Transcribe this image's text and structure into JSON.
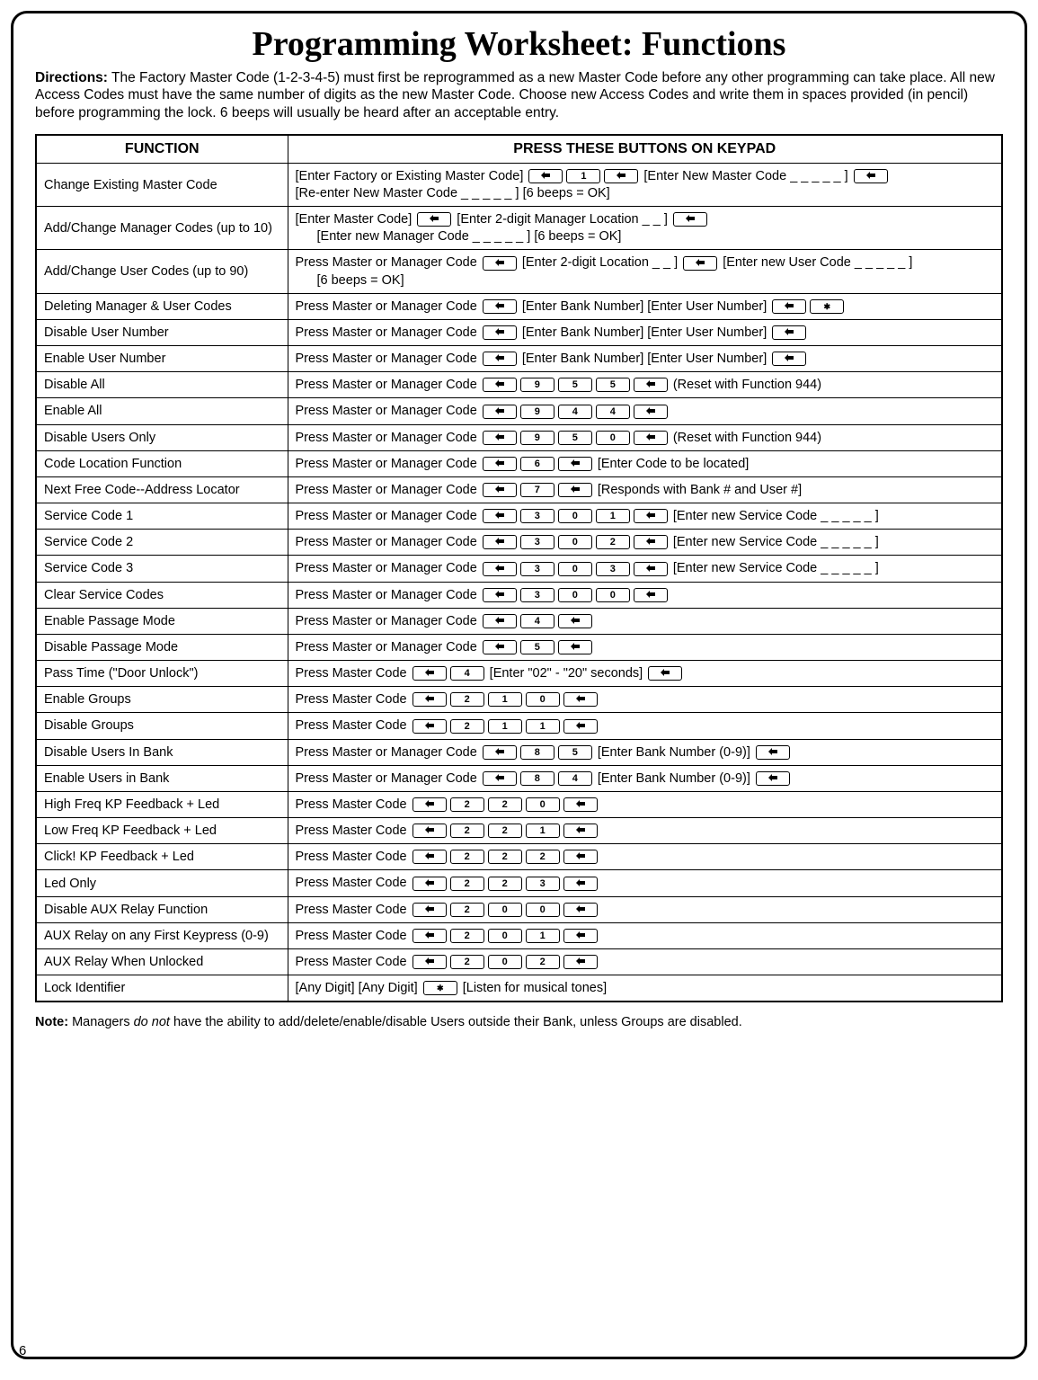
{
  "title": "Programming Worksheet:  Functions",
  "directions_label": "Directions:",
  "directions_text": "  The Factory Master Code (1-2-3-4-5) must first be reprogrammed as a new Master Code before any other programming can take place.  All new Access Codes must have the same number of digits as the new Master Code.  Choose new Access Codes and write them in spaces provided (in pencil) before programming the lock.  6 beeps will usually be heard after an acceptable entry.",
  "header_function": "FUNCTION",
  "header_press": "PRESS THESE BUTTONS ON KEYPAD",
  "rows": [
    {
      "fn": "Change Existing Master Code",
      "seq": [
        {
          "t": "text",
          "v": "[Enter Factory or Existing Master Code] "
        },
        {
          "t": "key",
          "v": "AL"
        },
        {
          "t": "key",
          "v": "1"
        },
        {
          "t": "key",
          "v": "AL"
        },
        {
          "t": "text",
          "v": " [Enter New Master Code _ _ _ _ _ ] "
        },
        {
          "t": "key",
          "v": "AL"
        },
        {
          "t": "br"
        },
        {
          "t": "text",
          "v": "[Re-enter New Master Code _ _ _ _ _ ] [6 beeps = OK]"
        }
      ]
    },
    {
      "fn": "Add/Change Manager Codes (up to 10)",
      "seq": [
        {
          "t": "text",
          "v": "[Enter Master Code] "
        },
        {
          "t": "key",
          "v": "AL"
        },
        {
          "t": "text",
          "v": " [Enter 2-digit Manager Location _ _ ] "
        },
        {
          "t": "key",
          "v": "AL"
        },
        {
          "t": "br"
        },
        {
          "t": "indent"
        },
        {
          "t": "text",
          "v": "[Enter new Manager Code _ _ _ _ _ ] [6 beeps = OK]"
        }
      ]
    },
    {
      "fn": "Add/Change User Codes (up to 90)",
      "seq": [
        {
          "t": "text",
          "v": "Press Master or Manager Code "
        },
        {
          "t": "key",
          "v": "AL"
        },
        {
          "t": "text",
          "v": " [Enter 2-digit Location _ _ ] "
        },
        {
          "t": "key",
          "v": "AL"
        },
        {
          "t": "text",
          "v": " [Enter new User Code _ _ _ _ _ ]"
        },
        {
          "t": "br"
        },
        {
          "t": "indent"
        },
        {
          "t": "text",
          "v": "[6 beeps = OK]"
        }
      ]
    },
    {
      "fn": "Deleting Manager & User Codes",
      "seq": [
        {
          "t": "text",
          "v": "Press Master or Manager Code "
        },
        {
          "t": "key",
          "v": "AL"
        },
        {
          "t": "text",
          "v": " [Enter Bank Number] [Enter User Number] "
        },
        {
          "t": "key",
          "v": "AL"
        },
        {
          "t": "key",
          "v": "*"
        }
      ]
    },
    {
      "fn": "Disable User Number",
      "seq": [
        {
          "t": "text",
          "v": "Press Master or Manager Code "
        },
        {
          "t": "key",
          "v": "AL"
        },
        {
          "t": "text",
          "v": " [Enter Bank Number] [Enter User Number] "
        },
        {
          "t": "key",
          "v": "AL"
        }
      ]
    },
    {
      "fn": "Enable User Number",
      "seq": [
        {
          "t": "text",
          "v": "Press Master or Manager Code "
        },
        {
          "t": "key",
          "v": "AL"
        },
        {
          "t": "text",
          "v": " [Enter Bank Number] [Enter User Number] "
        },
        {
          "t": "key",
          "v": "AL"
        }
      ]
    },
    {
      "fn": "Disable All",
      "seq": [
        {
          "t": "text",
          "v": "Press Master or Manager Code "
        },
        {
          "t": "key",
          "v": "AL"
        },
        {
          "t": "key",
          "v": "9"
        },
        {
          "t": "key",
          "v": "5"
        },
        {
          "t": "key",
          "v": "5"
        },
        {
          "t": "key",
          "v": "AL"
        },
        {
          "t": "text",
          "v": "  (Reset with Function 944)"
        }
      ]
    },
    {
      "fn": "Enable All",
      "seq": [
        {
          "t": "text",
          "v": "Press Master or Manager Code "
        },
        {
          "t": "key",
          "v": "AL"
        },
        {
          "t": "key",
          "v": "9"
        },
        {
          "t": "key",
          "v": "4"
        },
        {
          "t": "key",
          "v": "4"
        },
        {
          "t": "key",
          "v": "AL"
        }
      ]
    },
    {
      "fn": "Disable Users Only",
      "seq": [
        {
          "t": "text",
          "v": "Press Master or Manager Code "
        },
        {
          "t": "key",
          "v": "AL"
        },
        {
          "t": "key",
          "v": "9"
        },
        {
          "t": "key",
          "v": "5"
        },
        {
          "t": "key",
          "v": "0"
        },
        {
          "t": "key",
          "v": "AL"
        },
        {
          "t": "text",
          "v": "  (Reset with Function 944)"
        }
      ]
    },
    {
      "fn": "Code Location Function",
      "seq": [
        {
          "t": "text",
          "v": "Press Master or Manager Code "
        },
        {
          "t": "key",
          "v": "AL"
        },
        {
          "t": "key",
          "v": "6"
        },
        {
          "t": "key",
          "v": "AL"
        },
        {
          "t": "text",
          "v": " [Enter Code to be located]"
        }
      ]
    },
    {
      "fn": "Next Free Code--Address Locator",
      "seq": [
        {
          "t": "text",
          "v": "Press Master or Manager Code "
        },
        {
          "t": "key",
          "v": "AL"
        },
        {
          "t": "key",
          "v": "7"
        },
        {
          "t": "key",
          "v": "AL"
        },
        {
          "t": "text",
          "v": " [Responds with Bank # and User #]"
        }
      ]
    },
    {
      "fn": "Service Code 1",
      "seq": [
        {
          "t": "text",
          "v": "Press Master or Manager Code "
        },
        {
          "t": "key",
          "v": "AL"
        },
        {
          "t": "key",
          "v": "3"
        },
        {
          "t": "key",
          "v": "0"
        },
        {
          "t": "key",
          "v": "1"
        },
        {
          "t": "key",
          "v": "AL"
        },
        {
          "t": "text",
          "v": " [Enter new Service Code _ _ _ _ _ ]"
        }
      ]
    },
    {
      "fn": "Service Code 2",
      "seq": [
        {
          "t": "text",
          "v": "Press Master or Manager Code "
        },
        {
          "t": "key",
          "v": "AL"
        },
        {
          "t": "key",
          "v": "3"
        },
        {
          "t": "key",
          "v": "0"
        },
        {
          "t": "key",
          "v": "2"
        },
        {
          "t": "key",
          "v": "AL"
        },
        {
          "t": "text",
          "v": " [Enter new Service Code _ _ _ _ _ ]"
        }
      ]
    },
    {
      "fn": "Service Code 3",
      "seq": [
        {
          "t": "text",
          "v": "Press Master or Manager Code "
        },
        {
          "t": "key",
          "v": "AL"
        },
        {
          "t": "key",
          "v": "3"
        },
        {
          "t": "key",
          "v": "0"
        },
        {
          "t": "key",
          "v": "3"
        },
        {
          "t": "key",
          "v": "AL"
        },
        {
          "t": "text",
          "v": " [Enter new Service Code _ _ _ _ _ ]"
        }
      ]
    },
    {
      "fn": "Clear Service Codes",
      "seq": [
        {
          "t": "text",
          "v": "Press Master or Manager Code "
        },
        {
          "t": "key",
          "v": "AL"
        },
        {
          "t": "key",
          "v": "3"
        },
        {
          "t": "key",
          "v": "0"
        },
        {
          "t": "key",
          "v": "0"
        },
        {
          "t": "key",
          "v": "AL"
        }
      ]
    },
    {
      "fn": "Enable Passage Mode",
      "seq": [
        {
          "t": "text",
          "v": "Press Master or Manager Code "
        },
        {
          "t": "key",
          "v": "AL"
        },
        {
          "t": "key",
          "v": "4"
        },
        {
          "t": "key",
          "v": "AL"
        }
      ]
    },
    {
      "fn": "Disable Passage Mode",
      "seq": [
        {
          "t": "text",
          "v": "Press Master or Manager Code "
        },
        {
          "t": "key",
          "v": "AL"
        },
        {
          "t": "key",
          "v": "5"
        },
        {
          "t": "key",
          "v": "AL"
        }
      ]
    },
    {
      "fn": "Pass Time (\"Door Unlock\")",
      "seq": [
        {
          "t": "text",
          "v": "Press Master Code "
        },
        {
          "t": "key",
          "v": "AL"
        },
        {
          "t": "key",
          "v": "4"
        },
        {
          "t": "text",
          "v": " [Enter \"02\" - \"20\" seconds] "
        },
        {
          "t": "key",
          "v": "AL"
        }
      ]
    },
    {
      "fn": "Enable Groups",
      "seq": [
        {
          "t": "text",
          "v": "Press Master Code "
        },
        {
          "t": "key",
          "v": "AL"
        },
        {
          "t": "key",
          "v": "2"
        },
        {
          "t": "key",
          "v": "1"
        },
        {
          "t": "key",
          "v": "0"
        },
        {
          "t": "key",
          "v": "AL"
        }
      ]
    },
    {
      "fn": "Disable Groups",
      "seq": [
        {
          "t": "text",
          "v": "Press Master Code "
        },
        {
          "t": "key",
          "v": "AL"
        },
        {
          "t": "key",
          "v": "2"
        },
        {
          "t": "key",
          "v": "1"
        },
        {
          "t": "key",
          "v": "1"
        },
        {
          "t": "key",
          "v": "AL"
        }
      ]
    },
    {
      "fn": "Disable Users In Bank",
      "seq": [
        {
          "t": "text",
          "v": "Press Master or Manager Code "
        },
        {
          "t": "key",
          "v": "AL"
        },
        {
          "t": "key",
          "v": "8"
        },
        {
          "t": "key",
          "v": "5"
        },
        {
          "t": "text",
          "v": " [Enter Bank Number (0-9)] "
        },
        {
          "t": "key",
          "v": "AL"
        }
      ]
    },
    {
      "fn": "Enable Users in Bank",
      "seq": [
        {
          "t": "text",
          "v": "Press Master or Manager Code "
        },
        {
          "t": "key",
          "v": "AL"
        },
        {
          "t": "key",
          "v": "8"
        },
        {
          "t": "key",
          "v": "4"
        },
        {
          "t": "text",
          "v": " [Enter Bank Number (0-9)] "
        },
        {
          "t": "key",
          "v": "AL"
        }
      ]
    },
    {
      "fn": "High Freq KP Feedback + Led",
      "seq": [
        {
          "t": "text",
          "v": "Press Master Code "
        },
        {
          "t": "key",
          "v": "AL"
        },
        {
          "t": "key",
          "v": "2"
        },
        {
          "t": "key",
          "v": "2"
        },
        {
          "t": "key",
          "v": "0"
        },
        {
          "t": "key",
          "v": "AL"
        }
      ]
    },
    {
      "fn": "Low Freq KP Feedback + Led",
      "seq": [
        {
          "t": "text",
          "v": "Press Master Code "
        },
        {
          "t": "key",
          "v": "AL"
        },
        {
          "t": "key",
          "v": "2"
        },
        {
          "t": "key",
          "v": "2"
        },
        {
          "t": "key",
          "v": "1"
        },
        {
          "t": "key",
          "v": "AL"
        }
      ]
    },
    {
      "fn": "Click!  KP Feedback + Led",
      "seq": [
        {
          "t": "text",
          "v": "Press Master Code "
        },
        {
          "t": "key",
          "v": "AL"
        },
        {
          "t": "key",
          "v": "2"
        },
        {
          "t": "key",
          "v": "2"
        },
        {
          "t": "key",
          "v": "2"
        },
        {
          "t": "key",
          "v": "AL"
        }
      ]
    },
    {
      "fn": "Led Only",
      "seq": [
        {
          "t": "text",
          "v": "Press Master Code "
        },
        {
          "t": "key",
          "v": "AL"
        },
        {
          "t": "key",
          "v": "2"
        },
        {
          "t": "key",
          "v": "2"
        },
        {
          "t": "key",
          "v": "3"
        },
        {
          "t": "key",
          "v": "AL"
        }
      ]
    },
    {
      "fn": "Disable AUX Relay Function",
      "seq": [
        {
          "t": "text",
          "v": "Press Master Code "
        },
        {
          "t": "key",
          "v": "AL"
        },
        {
          "t": "key",
          "v": "2"
        },
        {
          "t": "key",
          "v": "0"
        },
        {
          "t": "key",
          "v": "0"
        },
        {
          "t": "key",
          "v": "AL"
        }
      ]
    },
    {
      "fn": "AUX Relay on any First Keypress (0-9)",
      "seq": [
        {
          "t": "text",
          "v": "Press Master Code "
        },
        {
          "t": "key",
          "v": "AL"
        },
        {
          "t": "key",
          "v": "2"
        },
        {
          "t": "key",
          "v": "0"
        },
        {
          "t": "key",
          "v": "1"
        },
        {
          "t": "key",
          "v": "AL"
        }
      ]
    },
    {
      "fn": "AUX Relay When Unlocked",
      "seq": [
        {
          "t": "text",
          "v": "Press Master Code "
        },
        {
          "t": "key",
          "v": "AL"
        },
        {
          "t": "key",
          "v": "2"
        },
        {
          "t": "key",
          "v": "0"
        },
        {
          "t": "key",
          "v": "2"
        },
        {
          "t": "key",
          "v": "AL"
        }
      ]
    },
    {
      "fn": "Lock Identifier",
      "seq": [
        {
          "t": "text",
          "v": "[Any Digit] [Any Digit]  "
        },
        {
          "t": "key",
          "v": "*"
        },
        {
          "t": "text",
          "v": " [Listen for musical tones]"
        }
      ]
    }
  ],
  "note_label": "Note:",
  "note_text_1": "  Managers ",
  "note_italic": "do not",
  "note_text_2": " have the ability to add/delete/enable/disable Users outside their Bank, unless Groups are disabled.",
  "page_number": "6"
}
